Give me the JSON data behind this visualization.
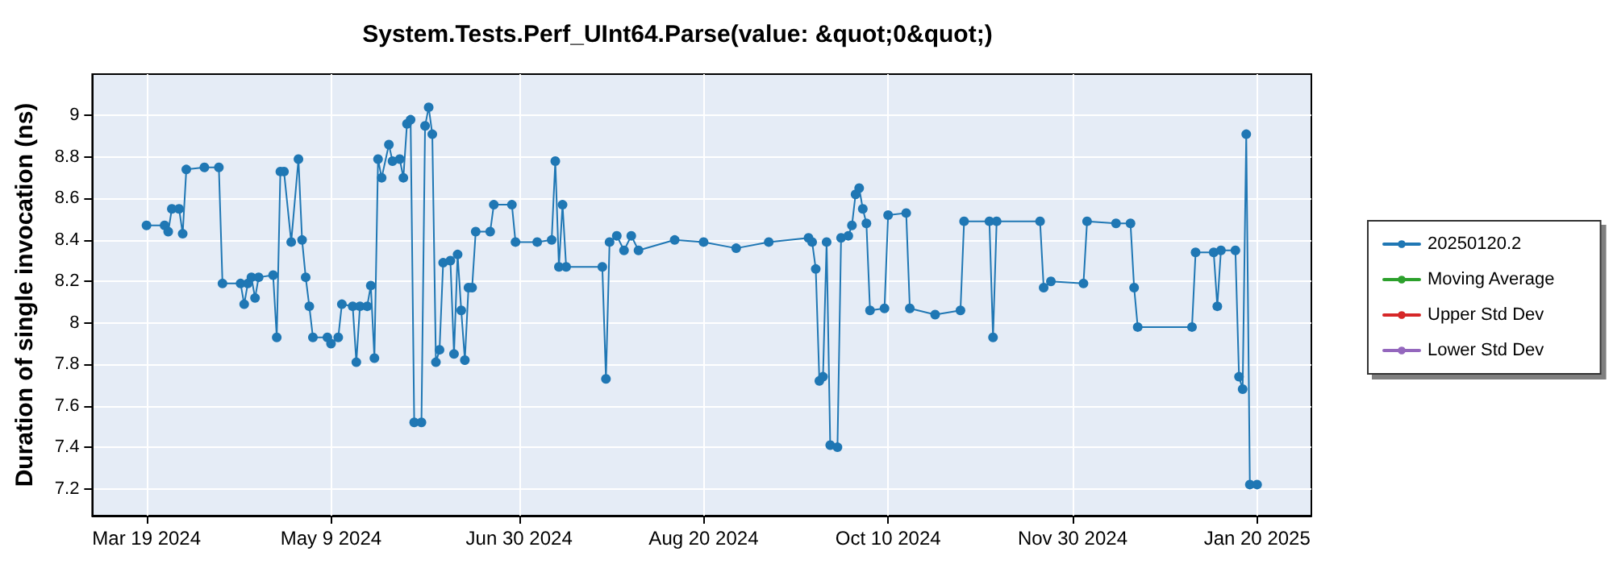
{
  "chart_data": {
    "type": "line",
    "title": "System.Tests.Perf_UInt64.Parse(value: &quot;0&quot;)",
    "ylabel": "Duration of single invocation (ns)",
    "x": [
      "2024-03-19",
      "2024-03-24",
      "2024-03-25",
      "2024-03-26",
      "2024-03-28",
      "2024-03-29",
      "2024-03-30",
      "2024-04-04",
      "2024-04-08",
      "2024-04-09",
      "2024-04-14",
      "2024-04-15",
      "2024-04-16",
      "2024-04-17",
      "2024-04-18",
      "2024-04-19",
      "2024-04-23",
      "2024-04-24",
      "2024-04-25",
      "2024-04-26",
      "2024-04-28",
      "2024-04-30",
      "2024-05-01",
      "2024-05-02",
      "2024-05-03",
      "2024-05-04",
      "2024-05-08",
      "2024-05-09",
      "2024-05-11",
      "2024-05-12",
      "2024-05-15",
      "2024-05-16",
      "2024-05-17",
      "2024-05-19",
      "2024-05-20",
      "2024-05-21",
      "2024-05-22",
      "2024-05-23",
      "2024-05-25",
      "2024-05-26",
      "2024-05-28",
      "2024-05-29",
      "2024-05-30",
      "2024-05-31",
      "2024-06-01",
      "2024-06-03",
      "2024-06-04",
      "2024-06-05",
      "2024-06-06",
      "2024-06-07",
      "2024-06-08",
      "2024-06-09",
      "2024-06-11",
      "2024-06-12",
      "2024-06-13",
      "2024-06-14",
      "2024-06-15",
      "2024-06-16",
      "2024-06-17",
      "2024-06-18",
      "2024-06-22",
      "2024-06-23",
      "2024-06-28",
      "2024-06-29",
      "2024-07-05",
      "2024-07-09",
      "2024-07-10",
      "2024-07-11",
      "2024-07-12",
      "2024-07-13",
      "2024-07-23",
      "2024-07-24",
      "2024-07-25",
      "2024-07-27",
      "2024-07-29",
      "2024-07-31",
      "2024-08-02",
      "2024-08-12",
      "2024-08-20",
      "2024-08-29",
      "2024-09-07",
      "2024-09-18",
      "2024-09-19",
      "2024-09-20",
      "2024-09-21",
      "2024-09-22",
      "2024-09-23",
      "2024-09-24",
      "2024-09-26",
      "2024-09-27",
      "2024-09-29",
      "2024-09-30",
      "2024-10-01",
      "2024-10-02",
      "2024-10-03",
      "2024-10-04",
      "2024-10-05",
      "2024-10-09",
      "2024-10-10",
      "2024-10-15",
      "2024-10-16",
      "2024-10-23",
      "2024-10-30",
      "2024-10-31",
      "2024-11-07",
      "2024-11-08",
      "2024-11-09",
      "2024-11-21",
      "2024-11-22",
      "2024-11-24",
      "2024-12-03",
      "2024-12-04",
      "2024-12-12",
      "2024-12-16",
      "2024-12-17",
      "2024-12-18",
      "2025-01-02",
      "2025-01-03",
      "2025-01-08",
      "2025-01-09",
      "2025-01-10",
      "2025-01-14",
      "2025-01-15",
      "2025-01-16",
      "2025-01-17",
      "2025-01-18",
      "2025-01-20"
    ],
    "series": [
      {
        "name": "20250120.2",
        "color": "#1f77b4",
        "values": [
          8.47,
          8.47,
          8.44,
          8.55,
          8.55,
          8.43,
          8.74,
          8.75,
          8.75,
          8.19,
          8.19,
          8.09,
          8.19,
          8.22,
          8.12,
          8.22,
          8.23,
          7.93,
          8.73,
          8.73,
          8.39,
          8.79,
          8.4,
          8.22,
          8.08,
          7.93,
          7.93,
          7.9,
          7.93,
          8.09,
          8.08,
          7.81,
          8.08,
          8.08,
          8.18,
          7.83,
          8.79,
          8.7,
          8.86,
          8.78,
          8.79,
          8.7,
          8.96,
          8.98,
          7.52,
          7.52,
          8.95,
          9.04,
          8.91,
          7.81,
          7.87,
          8.29,
          8.3,
          7.85,
          8.33,
          8.06,
          7.82,
          8.17,
          8.17,
          8.44,
          8.44,
          8.57,
          8.57,
          8.39,
          8.39,
          8.4,
          8.78,
          8.27,
          8.57,
          8.27,
          8.27,
          7.73,
          8.39,
          8.42,
          8.35,
          8.42,
          8.35,
          8.4,
          8.39,
          8.36,
          8.39,
          8.41,
          8.39,
          8.26,
          7.72,
          7.74,
          8.39,
          7.41,
          7.4,
          8.41,
          8.42,
          8.47,
          8.62,
          8.65,
          8.55,
          8.48,
          8.06,
          8.07,
          8.52,
          8.53,
          8.07,
          8.04,
          8.06,
          8.49,
          8.49,
          7.93,
          8.49,
          8.49,
          8.17,
          8.2,
          8.19,
          8.49,
          8.48,
          8.48,
          8.17,
          7.98,
          7.98,
          8.34,
          8.34,
          8.08,
          8.35,
          8.35,
          7.74,
          7.68,
          8.91,
          7.22,
          7.22
        ]
      },
      {
        "name": "Moving Average",
        "color": "#2ca02c",
        "values": [
          null,
          null,
          null,
          null,
          null,
          null,
          null,
          null,
          null,
          null,
          null,
          null,
          null,
          null,
          null,
          null,
          null,
          null,
          null,
          null,
          null,
          null,
          null,
          null,
          null,
          null,
          null,
          null,
          null,
          null,
          null,
          null,
          null,
          null,
          null,
          null,
          null,
          null,
          null,
          null,
          null,
          null,
          null,
          null,
          null,
          null,
          null,
          null,
          null,
          null,
          null,
          null,
          null,
          null,
          null,
          null,
          null,
          null,
          null,
          null,
          null,
          null,
          null,
          null,
          null,
          null,
          null,
          null,
          null,
          null,
          null,
          null,
          null,
          null,
          null,
          null,
          null,
          null,
          null,
          null,
          null,
          null,
          null,
          null,
          null,
          null,
          null,
          null,
          null,
          null,
          null,
          null,
          null,
          null,
          null,
          null,
          null,
          null,
          null,
          null,
          null,
          null,
          null,
          null,
          null,
          null,
          null,
          null,
          null,
          null,
          null,
          null,
          null,
          null,
          null,
          null,
          null,
          null,
          null,
          null,
          null,
          null,
          null,
          null,
          null,
          null,
          null
        ]
      },
      {
        "name": "Upper Std Dev",
        "color": "#d62728",
        "values": [
          null,
          null,
          null,
          null,
          null,
          null,
          null,
          null,
          null,
          null,
          null,
          null,
          null,
          null,
          null,
          null,
          null,
          null,
          null,
          null,
          null,
          null,
          null,
          null,
          null,
          null,
          null,
          null,
          null,
          null,
          null,
          null,
          null,
          null,
          null,
          null,
          null,
          null,
          null,
          null,
          null,
          null,
          null,
          null,
          null,
          null,
          null,
          null,
          null,
          null,
          null,
          null,
          null,
          null,
          null,
          null,
          null,
          null,
          null,
          null,
          null,
          null,
          null,
          null,
          null,
          null,
          null,
          null,
          null,
          null,
          null,
          null,
          null,
          null,
          null,
          null,
          null,
          null,
          null,
          null,
          null,
          null,
          null,
          null,
          null,
          null,
          null,
          null,
          null,
          null,
          null,
          null,
          null,
          null,
          null,
          null,
          null,
          null,
          null,
          null,
          null,
          null,
          null,
          null,
          null,
          null,
          null,
          null,
          null,
          null,
          null,
          null,
          null,
          null,
          null,
          null,
          null,
          null,
          null,
          null,
          null,
          null,
          null,
          null,
          null,
          null,
          null
        ]
      },
      {
        "name": "Lower Std Dev",
        "color": "#9467bd",
        "values": [
          null,
          null,
          null,
          null,
          null,
          null,
          null,
          null,
          null,
          null,
          null,
          null,
          null,
          null,
          null,
          null,
          null,
          null,
          null,
          null,
          null,
          null,
          null,
          null,
          null,
          null,
          null,
          null,
          null,
          null,
          null,
          null,
          null,
          null,
          null,
          null,
          null,
          null,
          null,
          null,
          null,
          null,
          null,
          null,
          null,
          null,
          null,
          null,
          null,
          null,
          null,
          null,
          null,
          null,
          null,
          null,
          null,
          null,
          null,
          null,
          null,
          null,
          null,
          null,
          null,
          null,
          null,
          null,
          null,
          null,
          null,
          null,
          null,
          null,
          null,
          null,
          null,
          null,
          null,
          null,
          null,
          null,
          null,
          null,
          null,
          null,
          null,
          null,
          null,
          null,
          null,
          null,
          null,
          null,
          null,
          null,
          null,
          null,
          null,
          null,
          null,
          null,
          null,
          null,
          null,
          null,
          null,
          null,
          null,
          null,
          null,
          null,
          null,
          null,
          null,
          null,
          null,
          null,
          null,
          null,
          null,
          null,
          null,
          null,
          null,
          null,
          null
        ]
      }
    ],
    "xlim": [
      "2024-03-04",
      "2025-02-04"
    ],
    "ylim": [
      7.07,
      9.2
    ],
    "xticks": [
      {
        "value": "2024-03-19",
        "label": "Mar 19 2024"
      },
      {
        "value": "2024-05-09",
        "label": "May 9 2024"
      },
      {
        "value": "2024-06-30",
        "label": "Jun 30 2024"
      },
      {
        "value": "2024-08-20",
        "label": "Aug 20 2024"
      },
      {
        "value": "2024-10-10",
        "label": "Oct 10 2024"
      },
      {
        "value": "2024-11-30",
        "label": "Nov 30 2024"
      },
      {
        "value": "2025-01-20",
        "label": "Jan 20 2025"
      }
    ],
    "yticks": [
      7.2,
      7.4,
      7.6,
      7.8,
      8,
      8.2,
      8.4,
      8.6,
      8.8,
      9
    ],
    "grid": true,
    "legend": "right",
    "marker": "circle",
    "line_style": "solid"
  }
}
